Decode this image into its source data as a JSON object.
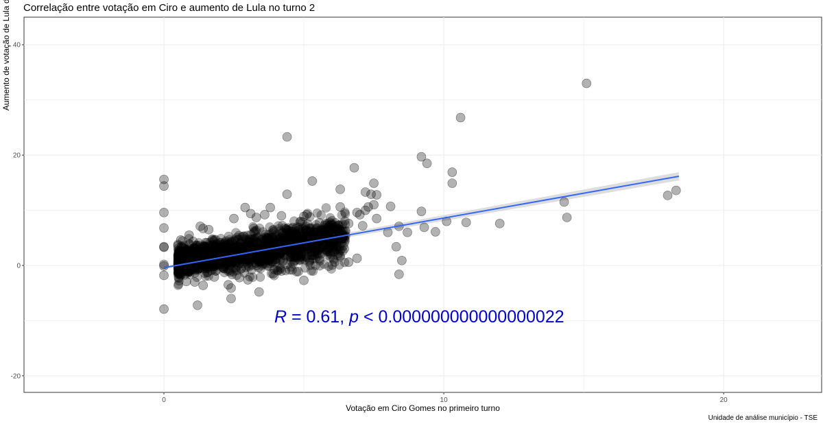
{
  "chart_data": {
    "type": "scatter",
    "title": "Correlação entre votação em Ciro e aumento de Lula no turno 2",
    "xlabel": "Votação em Ciro Gomes no primeiro turno",
    "ylabel": "Aumento de votação de Lula do primeiro para o segundo turno",
    "caption": "Unidade de análise município - TSE",
    "xlim": [
      -5.0,
      23.5
    ],
    "ylim": [
      -23,
      45
    ],
    "x_ticks": [
      0,
      10,
      20
    ],
    "y_ticks": [
      -20,
      0,
      20,
      40
    ],
    "x_tick_labels": [
      "0",
      "10",
      "20"
    ],
    "y_tick_labels": [
      "-20",
      "0",
      "20",
      "40"
    ],
    "grid": true,
    "point_color": "#000000",
    "point_alpha": 0.3,
    "annotation": {
      "r_symbol": "R",
      "r_text": " = 0.61, ",
      "p_symbol": "p",
      "p_text": " < 0.000000000000000022",
      "color": "#0000cc"
    },
    "regression": {
      "color": "#3366ff",
      "ci_color": "#bbbbbb",
      "x_range": [
        0,
        18.4
      ],
      "intercept": -0.4,
      "slope": 0.9,
      "ci_halfwidth_start": 0.25,
      "ci_halfwidth_end": 0.75
    },
    "dense_cluster": {
      "description_count": 1800,
      "x_range": [
        0.5,
        6.5
      ],
      "center_intercept": 0.2,
      "center_slope": 0.75,
      "y_spread": 1.6
    },
    "points": [
      [
        0.0,
        15.6
      ],
      [
        0.0,
        14.4
      ],
      [
        0.0,
        9.6
      ],
      [
        0.0,
        6.8
      ],
      [
        0.0,
        3.4
      ],
      [
        0.0,
        3.3
      ],
      [
        0.0,
        0.2
      ],
      [
        0.0,
        -0.1
      ],
      [
        0.0,
        -1.8
      ],
      [
        0.0,
        -7.9
      ],
      [
        1.2,
        -7.2
      ],
      [
        2.4,
        -6.0
      ],
      [
        2.4,
        -4.1
      ],
      [
        3.4,
        -4.8
      ],
      [
        4.4,
        23.3
      ],
      [
        4.4,
        12.9
      ],
      [
        5.3,
        15.3
      ],
      [
        5.0,
        8.9
      ],
      [
        5.1,
        9.2
      ],
      [
        6.3,
        13.8
      ],
      [
        6.8,
        17.7
      ],
      [
        7.2,
        13.3
      ],
      [
        7.4,
        12.9
      ],
      [
        7.5,
        14.9
      ],
      [
        7.6,
        12.8
      ],
      [
        7.5,
        11.0
      ],
      [
        7.6,
        8.5
      ],
      [
        7.2,
        10.0
      ],
      [
        7.0,
        9.2
      ],
      [
        8.1,
        10.7
      ],
      [
        7.3,
        10.6
      ],
      [
        6.3,
        10.6
      ],
      [
        6.6,
        7.6
      ],
      [
        6.9,
        9.6
      ],
      [
        7.1,
        7.2
      ],
      [
        8.0,
        6.0
      ],
      [
        8.4,
        7.1
      ],
      [
        9.2,
        19.7
      ],
      [
        9.4,
        18.5
      ],
      [
        10.6,
        26.8
      ],
      [
        10.3,
        14.9
      ],
      [
        10.3,
        16.9
      ],
      [
        9.2,
        9.8
      ],
      [
        9.7,
        6.1
      ],
      [
        9.3,
        6.9
      ],
      [
        8.7,
        6.0
      ],
      [
        8.3,
        3.4
      ],
      [
        8.5,
        0.9
      ],
      [
        8.4,
        -1.6
      ],
      [
        6.9,
        1.3
      ],
      [
        6.6,
        0.6
      ],
      [
        5.6,
        3.2
      ],
      [
        5.0,
        -2.7
      ],
      [
        4.8,
        -1.1
      ],
      [
        5.3,
        1.8
      ],
      [
        10.1,
        8.0
      ],
      [
        10.8,
        7.8
      ],
      [
        12.0,
        7.6
      ],
      [
        15.1,
        33.0
      ],
      [
        14.3,
        11.5
      ],
      [
        14.4,
        8.7
      ],
      [
        18.0,
        12.7
      ],
      [
        18.3,
        13.6
      ],
      [
        3.6,
        9.2
      ],
      [
        3.8,
        10.5
      ],
      [
        2.9,
        10.5
      ],
      [
        2.5,
        8.5
      ],
      [
        3.1,
        9.4
      ],
      [
        3.3,
        8.7
      ],
      [
        4.2,
        9.0
      ],
      [
        1.4,
        6.7
      ],
      [
        1.6,
        6.5
      ],
      [
        1.3,
        7.1
      ],
      [
        0.6,
        4.6
      ],
      [
        0.9,
        5.5
      ],
      [
        0.5,
        3.6
      ],
      [
        0.6,
        -1.8
      ],
      [
        0.8,
        -2.9
      ],
      [
        1.4,
        -3.6
      ],
      [
        1.1,
        -3.0
      ],
      [
        2.3,
        -3.5
      ],
      [
        1.8,
        -2.1
      ],
      [
        3.0,
        -2.6
      ],
      [
        3.9,
        -1.5
      ],
      [
        4.2,
        -1.0
      ],
      [
        2.7,
        -2.2
      ]
    ]
  }
}
